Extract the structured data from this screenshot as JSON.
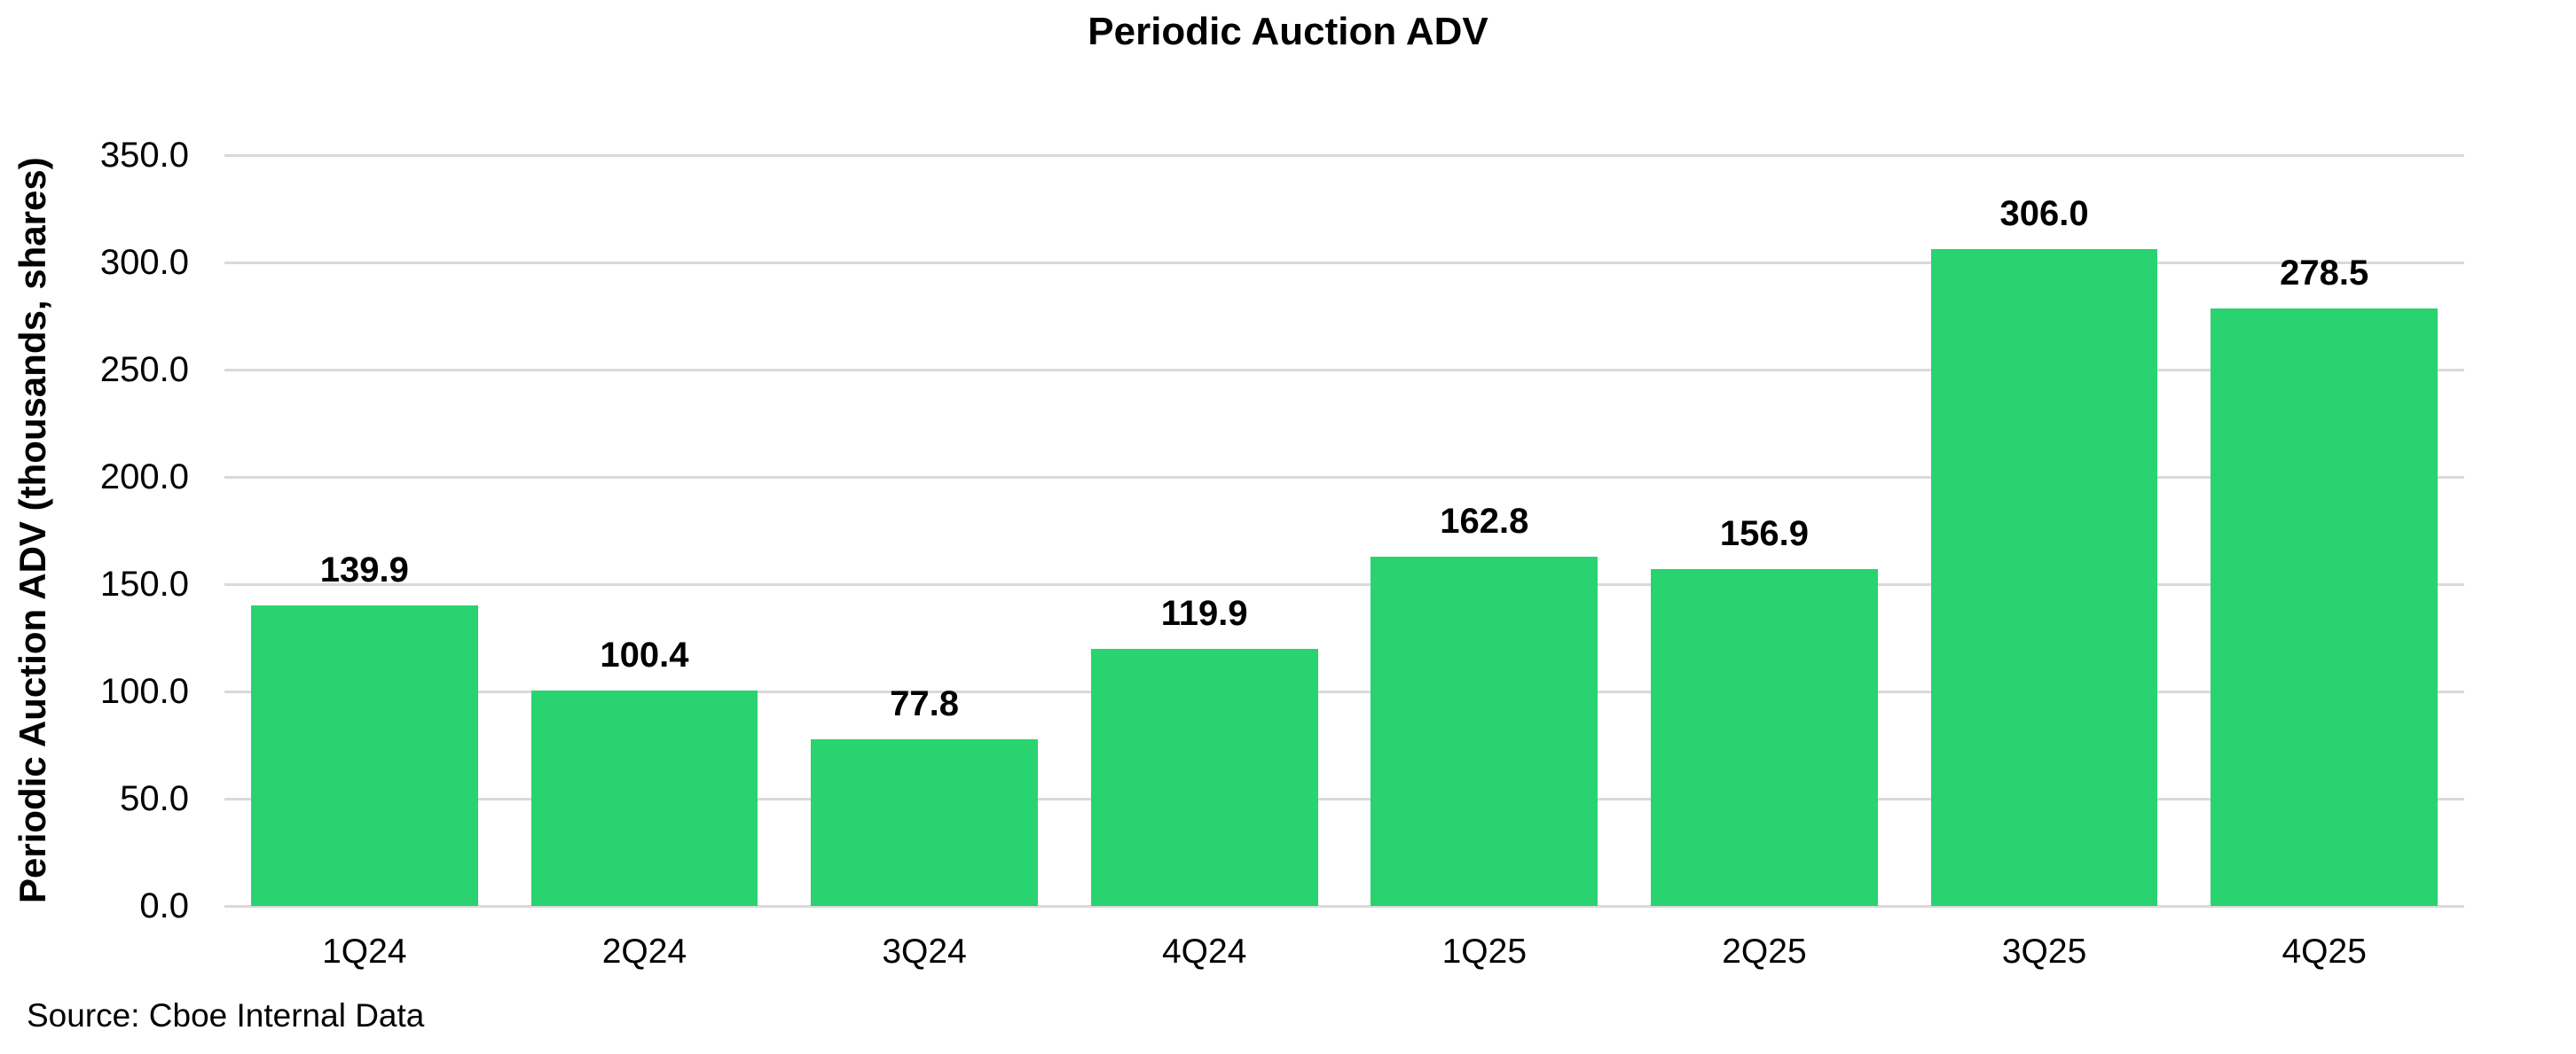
{
  "page": {
    "background": "#FFFFFF"
  },
  "chart_data": {
    "type": "bar",
    "title": "Periodic Auction ADV",
    "ylabel": "Periodic Auction ADV (thousands, shares)",
    "xlabel": "",
    "categories": [
      "1Q24",
      "2Q24",
      "3Q24",
      "4Q24",
      "1Q25",
      "2Q25",
      "3Q25",
      "4Q25"
    ],
    "values": [
      139.9,
      100.4,
      77.8,
      119.9,
      162.8,
      156.9,
      306.0,
      278.5
    ],
    "value_labels": [
      "139.9",
      "100.4",
      "77.8",
      "119.9",
      "162.8",
      "156.9",
      "306.0",
      "278.5"
    ],
    "ylim": [
      0,
      350
    ],
    "yticks": [
      {
        "value": 0,
        "label": "0.0"
      },
      {
        "value": 50,
        "label": "50.0"
      },
      {
        "value": 100,
        "label": "100.0"
      },
      {
        "value": 150,
        "label": "150.0"
      },
      {
        "value": 200,
        "label": "200.0"
      },
      {
        "value": 250,
        "label": "250.0"
      },
      {
        "value": 300,
        "label": "300.0"
      },
      {
        "value": 350,
        "label": "350.0"
      }
    ],
    "grid": true,
    "legend_position": "none",
    "colors": {
      "bar": "#29D36F",
      "gridline": "#D9D9D9",
      "text": "#000000"
    }
  },
  "footer": {
    "source": "Source: Cboe Internal Data"
  }
}
